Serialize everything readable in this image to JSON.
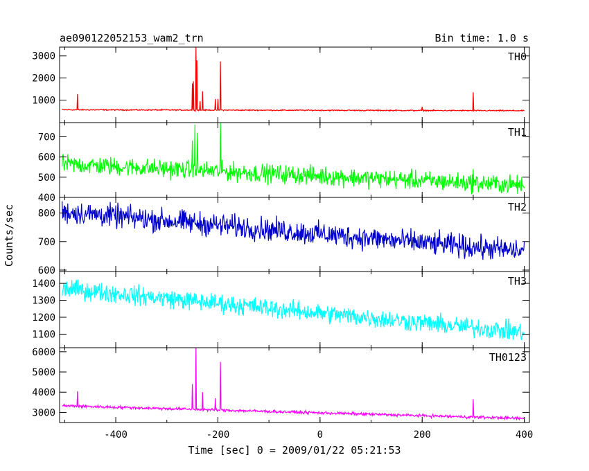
{
  "chart_data": {
    "type": "line",
    "title": "ae090122052153_wam2_trn",
    "bin_time": "Bin time: 1.0 s",
    "xlabel": "Time [sec] 0 = 2009/01/22 05:21:53",
    "ylabel": "Counts/sec",
    "xlim": [
      -510,
      410
    ],
    "x_ticks": [
      -400,
      -200,
      0,
      200,
      400
    ],
    "x_range": [
      -505,
      400
    ],
    "grid": false,
    "panels": [
      {
        "name": "TH0",
        "color": "#ff0000",
        "ylim": [
          -20,
          3400
        ],
        "y_ticks": [
          1000,
          2000,
          3000
        ],
        "baseline_start": 560,
        "baseline_end": 520,
        "noise": 25,
        "spikes": [
          {
            "x": -475,
            "y": 1270
          },
          {
            "x": -250,
            "y": 1750
          },
          {
            "x": -248,
            "y": 1850
          },
          {
            "x": -243,
            "y": 3400
          },
          {
            "x": -241,
            "y": 2800
          },
          {
            "x": -235,
            "y": 950
          },
          {
            "x": -230,
            "y": 1400
          },
          {
            "x": -205,
            "y": 1050
          },
          {
            "x": -200,
            "y": 1050
          },
          {
            "x": -195,
            "y": 2750
          },
          {
            "x": 200,
            "y": 700
          },
          {
            "x": 300,
            "y": 1350
          }
        ]
      },
      {
        "name": "TH1",
        "color": "#00ff00",
        "ylim": [
          400,
          770
        ],
        "y_ticks": [
          400,
          500,
          600,
          700
        ],
        "baseline_start": 565,
        "baseline_end": 460,
        "noise": 45,
        "spikes": [
          {
            "x": -250,
            "y": 680
          },
          {
            "x": -245,
            "y": 760
          },
          {
            "x": -240,
            "y": 720
          },
          {
            "x": -195,
            "y": 770
          },
          {
            "x": 300,
            "y": 540
          }
        ]
      },
      {
        "name": "TH2",
        "color": "#0000cc",
        "ylim": [
          595,
          855
        ],
        "y_ticks": [
          600,
          700,
          800
        ],
        "baseline_start": 805,
        "baseline_end": 665,
        "noise": 40,
        "spikes": []
      },
      {
        "name": "TH3",
        "color": "#00ffff",
        "ylim": [
          1020,
          1470
        ],
        "y_ticks": [
          1100,
          1200,
          1300,
          1400
        ],
        "baseline_start": 1370,
        "baseline_end": 1110,
        "noise": 55,
        "spikes": []
      },
      {
        "name": "TH0123",
        "color": "#ff00ff",
        "ylim": [
          2500,
          6200
        ],
        "y_ticks": [
          3000,
          4000,
          5000,
          6000
        ],
        "baseline_start": 3330,
        "baseline_end": 2700,
        "noise": 70,
        "spikes": [
          {
            "x": -475,
            "y": 4050
          },
          {
            "x": -250,
            "y": 4400
          },
          {
            "x": -243,
            "y": 6200
          },
          {
            "x": -230,
            "y": 4000
          },
          {
            "x": -205,
            "y": 3700
          },
          {
            "x": -195,
            "y": 5500
          },
          {
            "x": 300,
            "y": 3650
          }
        ]
      }
    ]
  }
}
